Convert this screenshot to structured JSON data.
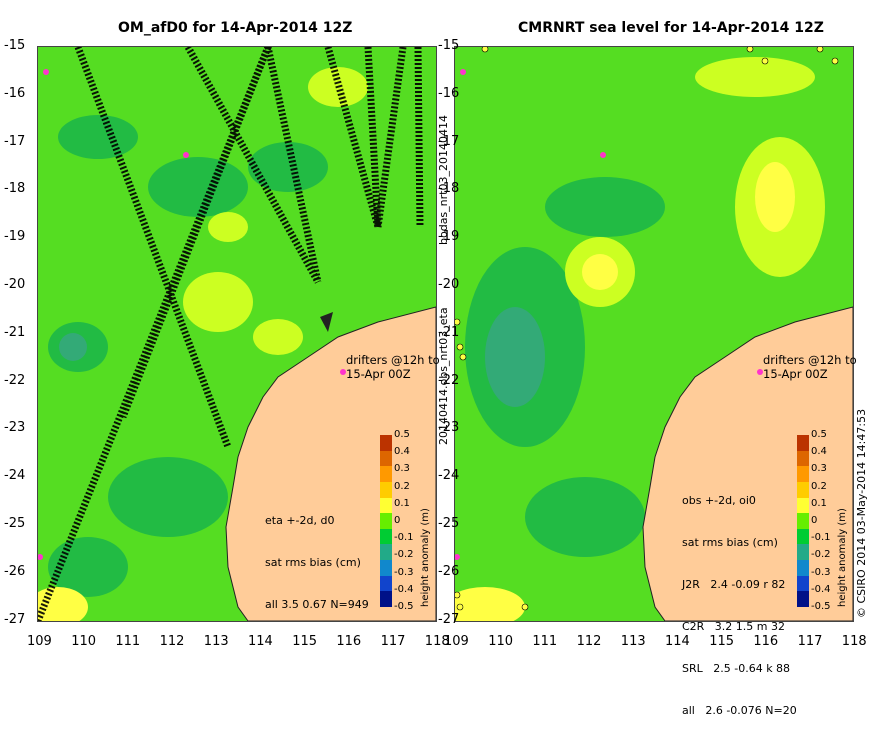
{
  "left_panel": {
    "title": "OM_afD0 for 14-Apr-2014 12Z",
    "stats_lines": [
      "eta +-2d, d0",
      "sat rms bias (cm)",
      "all 3.5 0.67 N=949"
    ],
    "drifters_label": [
      "drifters @12h to",
      "15-Apr 00Z"
    ]
  },
  "right_panel": {
    "title": "CMRNRT sea level  for 14-Apr-2014 12Z",
    "stats_lines": [
      "obs +-2d, oi0",
      "sat rms bias (cm)",
      "J2R   2.4 -0.09 r 82",
      "C2R   3.2 1.5 m 32",
      "SRL   2.5 -0.64 k 88",
      "all   2.6 -0.076 N=20"
    ],
    "drifters_label": [
      "drifters @12h to",
      "15-Apr 00Z"
    ]
  },
  "between_label_top": "bodas_nrt03_20140414",
  "between_label_bottom": "20140414.obs_nrt03_eta",
  "copyright": "© CSIRO 2014   03-May-2014 14:47:53",
  "axes": {
    "lat_ticks": [
      "-15",
      "-16",
      "-17",
      "-18",
      "-19",
      "-20",
      "-21",
      "-22",
      "-23",
      "-24",
      "-25",
      "-26",
      "-27"
    ],
    "lon_ticks": [
      "109",
      "110",
      "111",
      "112",
      "113",
      "114",
      "115",
      "116",
      "117",
      "118"
    ]
  },
  "colorbar": {
    "label": "height anomaly (m)",
    "ticks": [
      "0.5",
      "0.4",
      "0.3",
      "0.2",
      "0.1",
      "0",
      "-0.1",
      "-0.2",
      "-0.3",
      "-0.4",
      "-0.5"
    ],
    "colors": [
      "#bb3300",
      "#dd6600",
      "#ff9900",
      "#ffcc00",
      "#ffff33",
      "#66ee00",
      "#00cc33",
      "#22aa88",
      "#1188cc",
      "#1144cc",
      "#001188"
    ]
  },
  "colors": {
    "ocean": "#55dd22",
    "land": "#ffcc99",
    "coast": "#222222",
    "track": "#000000",
    "drifter": "#ff33cc"
  }
}
